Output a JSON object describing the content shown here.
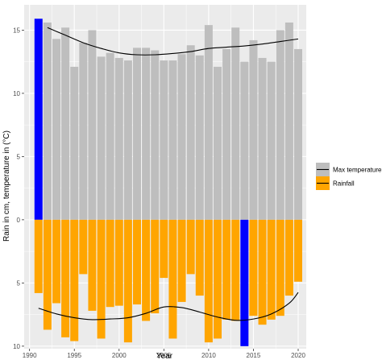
{
  "chart_data": {
    "type": "bar",
    "title": "",
    "xlabel": "Year",
    "ylabel": "Rain in cm, temperature in (°C)",
    "x_ticks": [
      1990,
      1995,
      2000,
      2005,
      2010,
      2015,
      2020
    ],
    "y_ticks": [
      {
        "value": 15,
        "label": "15"
      },
      {
        "value": 10,
        "label": "10"
      },
      {
        "value": 5,
        "label": "5"
      },
      {
        "value": 0,
        "label": "0"
      },
      {
        "value": -5,
        "label": "5"
      },
      {
        "value": -10,
        "label": "10"
      }
    ],
    "xlim": [
      1989.4,
      2020.9
    ],
    "ylim": [
      -10.2,
      17.0
    ],
    "grid": true,
    "legend_position": "right",
    "colors": {
      "panel": "#ebebeb",
      "grid_major": "#ffffff",
      "max_temperature": "#bebebe",
      "rainfall": "#ffa500",
      "highlight": "#0000ff",
      "trend": "#000000"
    },
    "legend": [
      {
        "key": "max_temperature",
        "label": "Max temperature"
      },
      {
        "key": "rainfall",
        "label": "Rainfall"
      }
    ],
    "years": [
      1991,
      1992,
      1993,
      1994,
      1995,
      1996,
      1997,
      1998,
      1999,
      2000,
      2001,
      2002,
      2003,
      2004,
      2005,
      2006,
      2007,
      2008,
      2009,
      2010,
      2011,
      2012,
      2013,
      2014,
      2015,
      2016,
      2017,
      2018,
      2019,
      2020
    ],
    "series": [
      {
        "name": "Max temperature",
        "key": "max_temperature",
        "values": [
          15.9,
          15.6,
          14.3,
          15.2,
          12.1,
          14.0,
          15.0,
          12.9,
          13.2,
          12.8,
          12.6,
          13.6,
          13.6,
          13.4,
          12.6,
          12.6,
          13.1,
          13.8,
          13.0,
          15.4,
          12.1,
          13.5,
          15.2,
          12.5,
          14.2,
          12.8,
          12.5,
          15.0,
          15.6,
          13.5
        ],
        "highlight_years": [
          1991
        ],
        "trend": [
          [
            1992,
            15.2
          ],
          [
            1994,
            14.6
          ],
          [
            1996,
            14.0
          ],
          [
            1998,
            13.55
          ],
          [
            2000,
            13.2
          ],
          [
            2002,
            13.05
          ],
          [
            2004,
            13.05
          ],
          [
            2006,
            13.15
          ],
          [
            2008,
            13.3
          ],
          [
            2010,
            13.55
          ],
          [
            2012,
            13.65
          ],
          [
            2014,
            13.75
          ],
          [
            2016,
            13.9
          ],
          [
            2018,
            14.1
          ],
          [
            2020,
            14.3
          ]
        ]
      },
      {
        "name": "Rainfall",
        "key": "rainfall",
        "values": [
          5.8,
          8.7,
          6.6,
          9.3,
          9.6,
          4.3,
          7.2,
          9.4,
          6.9,
          6.8,
          9.7,
          6.7,
          8.0,
          7.4,
          4.6,
          9.4,
          6.5,
          4.3,
          6.0,
          9.7,
          9.4,
          7.9,
          8.0,
          10.0,
          7.6,
          8.3,
          7.9,
          7.6,
          6.0,
          4.9
        ],
        "highlight_years": [
          2014
        ],
        "trend": [
          [
            1991,
            7.0
          ],
          [
            1993,
            7.45
          ],
          [
            1995,
            7.75
          ],
          [
            1997,
            7.9
          ],
          [
            1999,
            7.85
          ],
          [
            2001,
            7.75
          ],
          [
            2003,
            7.4
          ],
          [
            2005,
            6.9
          ],
          [
            2007,
            6.95
          ],
          [
            2009,
            7.3
          ],
          [
            2011,
            7.7
          ],
          [
            2013,
            7.95
          ],
          [
            2015,
            7.85
          ],
          [
            2017,
            7.45
          ],
          [
            2019,
            6.6
          ],
          [
            2020,
            5.75
          ]
        ]
      }
    ]
  }
}
